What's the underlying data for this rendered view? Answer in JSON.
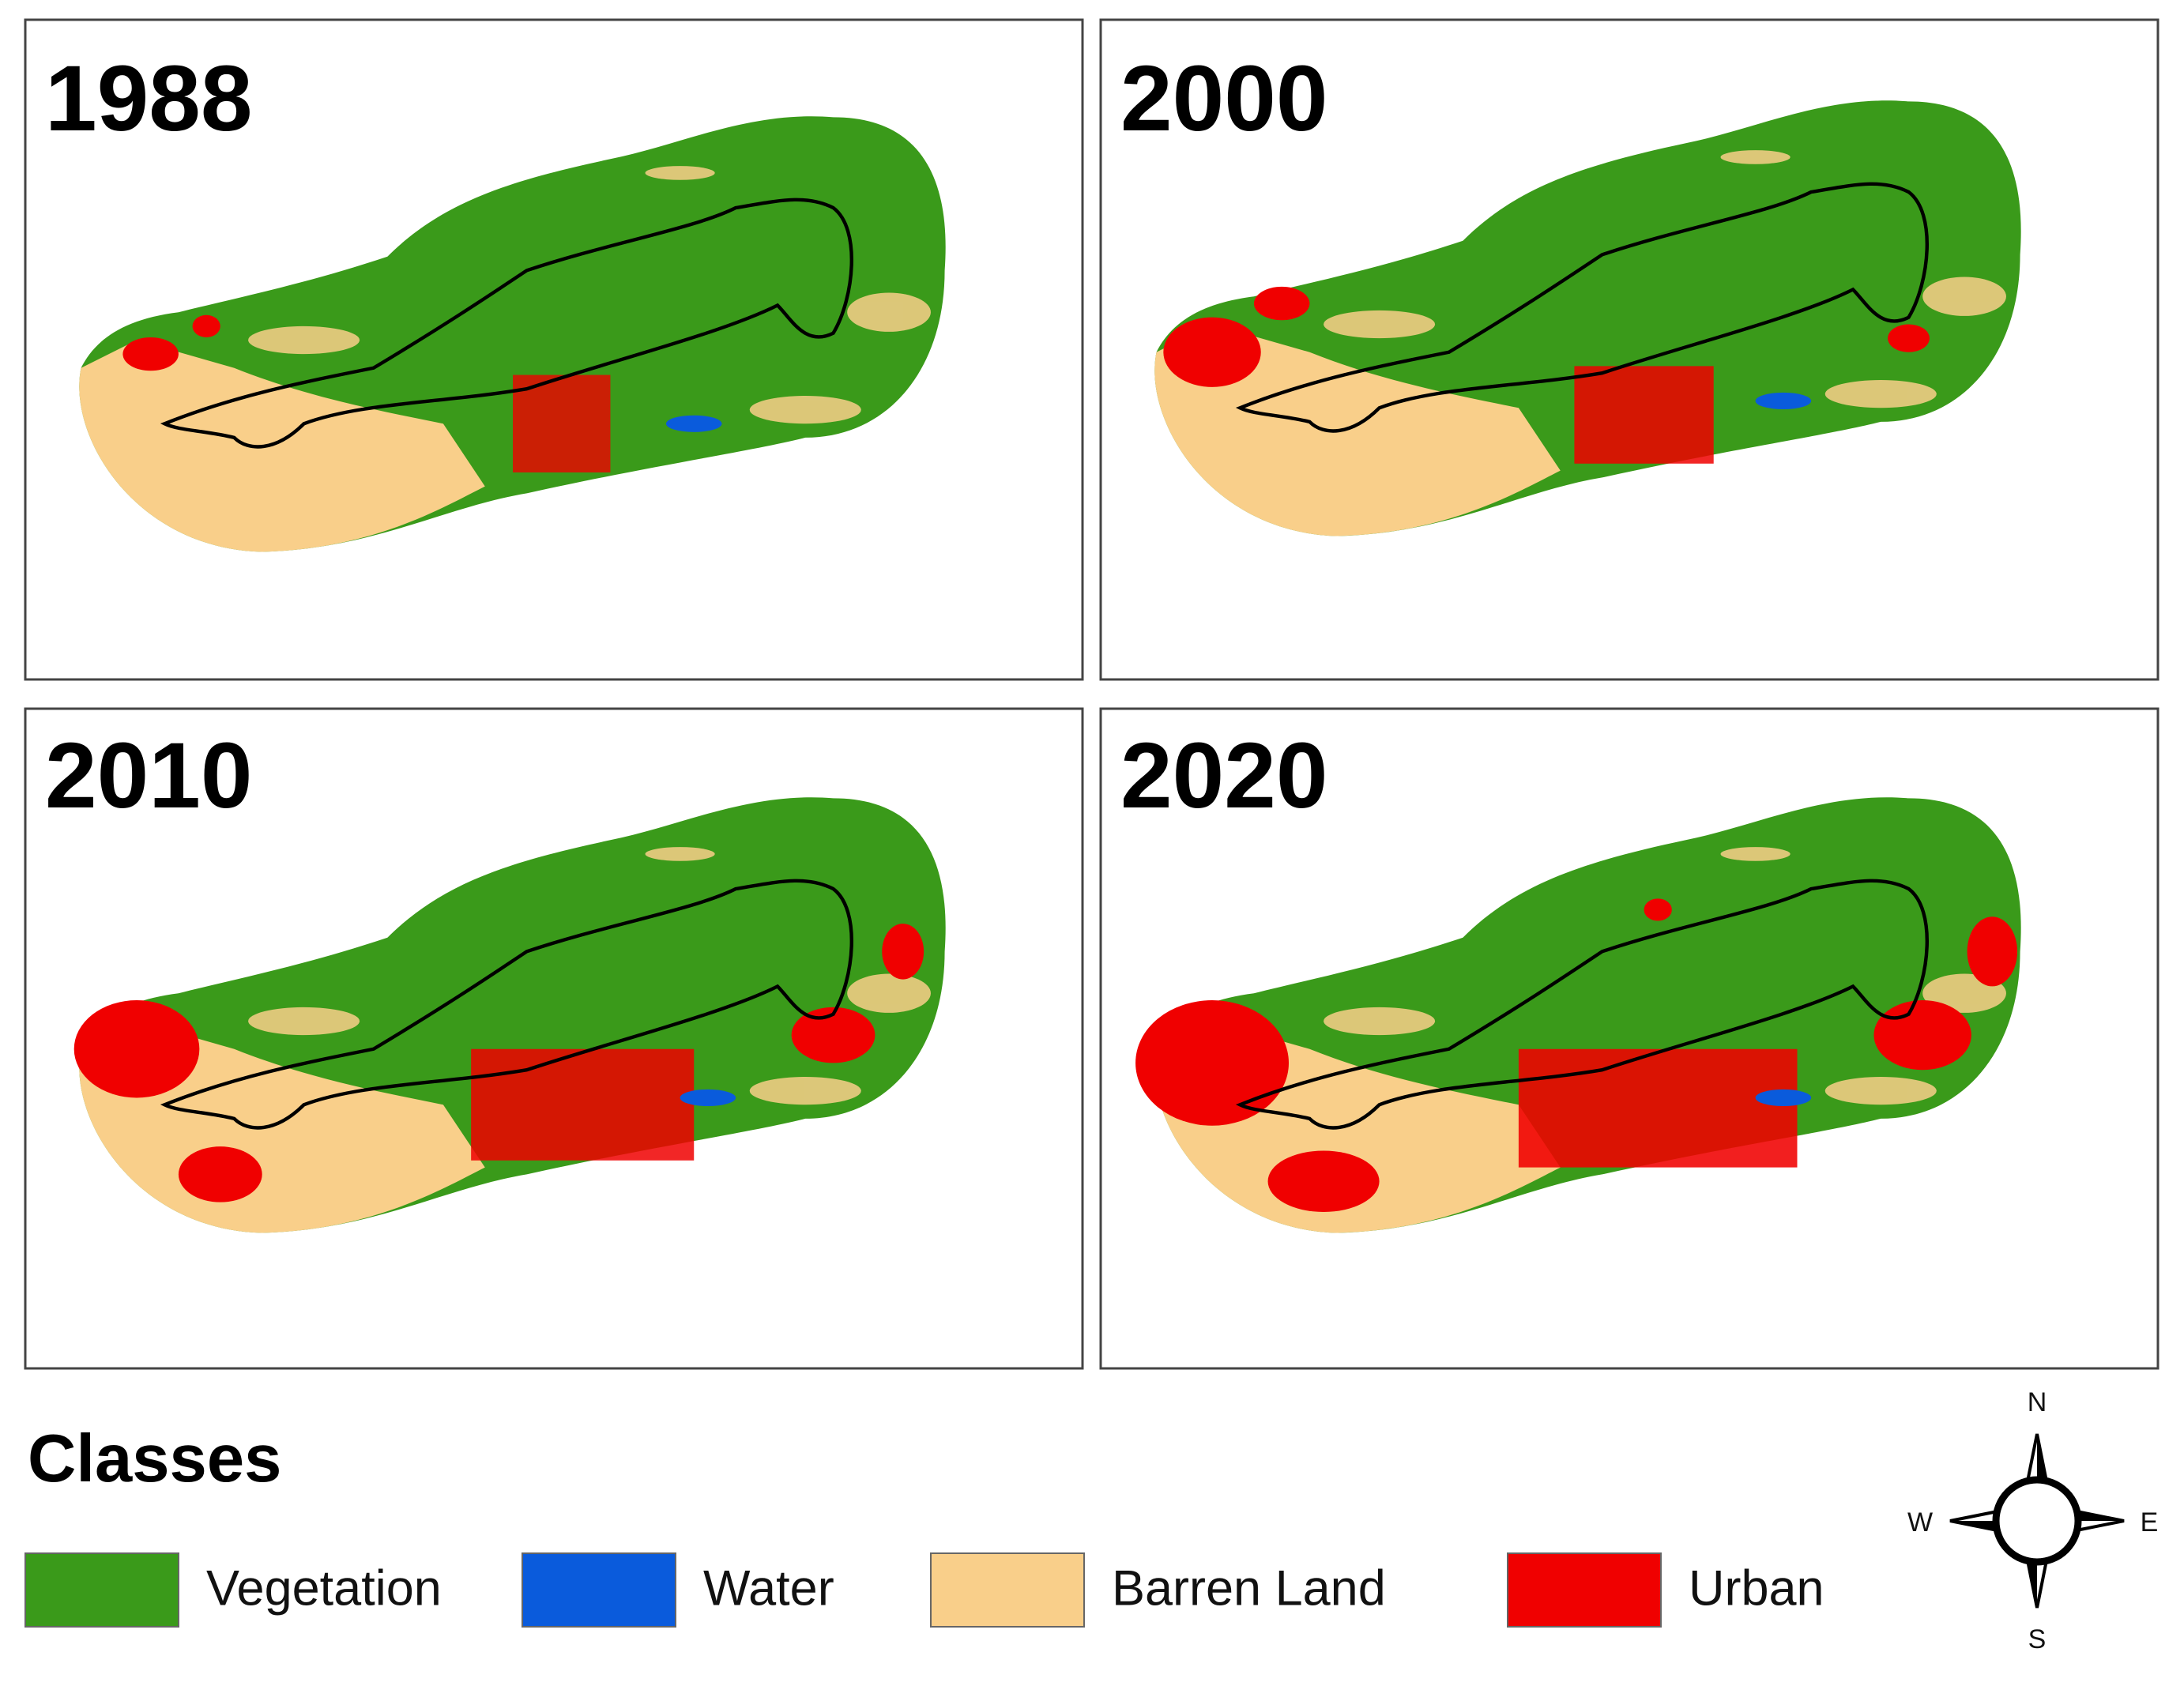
{
  "panels": [
    {
      "title": "1988"
    },
    {
      "title": "2000"
    },
    {
      "title": "2010"
    },
    {
      "title": "2020"
    }
  ],
  "legend": {
    "title": "Classes",
    "items": [
      {
        "label": "Vegetation",
        "color": "#3a9a1a"
      },
      {
        "label": "Water",
        "color": "#0a5bdc"
      },
      {
        "label": "Barren Land",
        "color": "#f9cf8a"
      },
      {
        "label": "Urban",
        "color": "#f00000"
      }
    ]
  },
  "compass": {
    "n": "N",
    "e": "E",
    "s": "S",
    "w": "W"
  }
}
